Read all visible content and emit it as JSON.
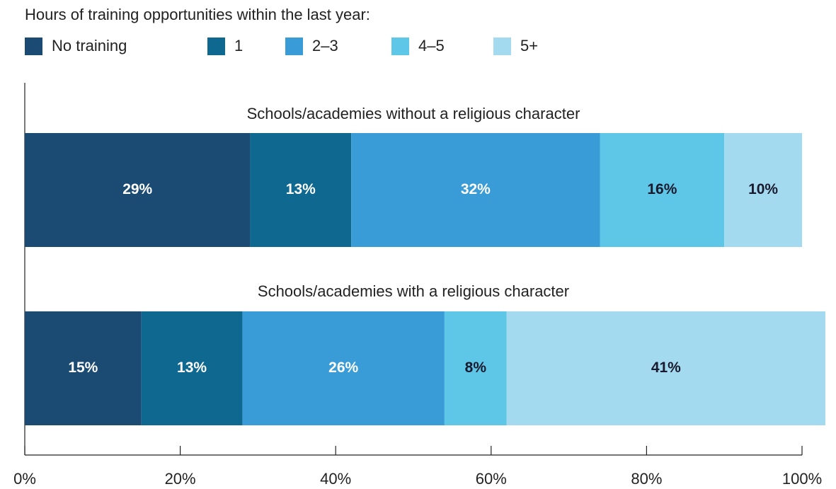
{
  "chart_data": {
    "type": "stacked-bar-horizontal",
    "legend_title": "Hours of training opportunities within the last year:",
    "categories": [
      "Schools/academies without a religious character",
      "Schools/academies with a religious character"
    ],
    "series": [
      {
        "name": "No training",
        "color": "#1b4a72",
        "label_color": "#ffffff",
        "values": [
          29,
          15
        ],
        "value_labels": [
          "29%",
          "15%"
        ]
      },
      {
        "name": "1",
        "color": "#0e6890",
        "label_color": "#ffffff",
        "values": [
          13,
          13
        ],
        "value_labels": [
          "13%",
          "13%"
        ]
      },
      {
        "name": "2–3",
        "color": "#3a9cd6",
        "label_color": "#ffffff",
        "values": [
          32,
          26
        ],
        "value_labels": [
          "32%",
          "26%"
        ]
      },
      {
        "name": "4–5",
        "color": "#5ec6e6",
        "label_color": "#1a1a2e",
        "values": [
          16,
          8
        ],
        "value_labels": [
          "16%",
          "8%"
        ]
      },
      {
        "name": "5+",
        "color": "#a3daf0",
        "label_color": "#1a1a2e",
        "values": [
          10,
          41
        ],
        "value_labels": [
          "10%",
          "41%"
        ]
      }
    ],
    "xlim": [
      0,
      100
    ],
    "xticks": [
      {
        "value": 0,
        "label": "0%"
      },
      {
        "value": 20,
        "label": "20%"
      },
      {
        "value": 40,
        "label": "40%"
      },
      {
        "value": 60,
        "label": "60%"
      },
      {
        "value": 80,
        "label": "80%"
      },
      {
        "value": 100,
        "label": "100%"
      }
    ]
  }
}
